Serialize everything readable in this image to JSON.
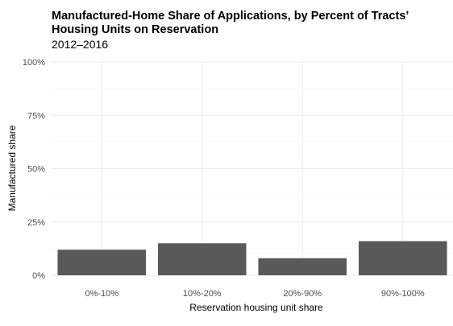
{
  "chart_data": {
    "type": "bar",
    "title": "Manufactured-Home Share of Applications, by Percent of Tracts’ Housing Units on Reservation",
    "subtitle": "2012–2016",
    "xlabel": "Reservation housing unit share",
    "ylabel": "Manufactured share",
    "categories": [
      "0%-10%",
      "10%-20%",
      "20%-90%",
      "90%-100%"
    ],
    "values": [
      0.12,
      0.15,
      0.08,
      0.16
    ],
    "ylim": [
      0,
      1
    ],
    "yticks": [
      0,
      0.25,
      0.5,
      0.75,
      1
    ],
    "ytick_labels": [
      "0%",
      "25%",
      "50%",
      "75%",
      "100%"
    ],
    "grid": true,
    "bar_color": "#595959"
  }
}
